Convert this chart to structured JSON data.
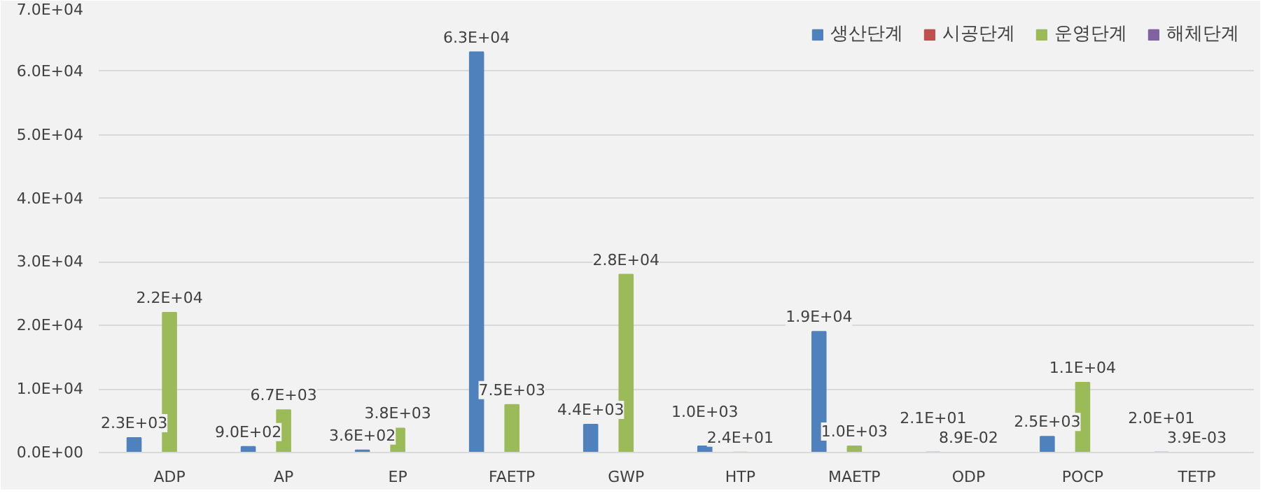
{
  "chart_data": {
    "type": "bar",
    "categories": [
      "ADP",
      "AP",
      "EP",
      "FAETP",
      "GWP",
      "HTP",
      "MAETP",
      "ODP",
      "POCP",
      "TETP"
    ],
    "series": [
      {
        "name": "생산단계",
        "color": "#4f81bd",
        "values": [
          2300,
          900,
          360,
          63000,
          4400,
          1000,
          19000,
          21,
          2500,
          20
        ],
        "value_labels": [
          "2.3E+03",
          "9.0E+02",
          "3.6E+02",
          "6.3E+04",
          "4.4E+03",
          "1.0E+03",
          "1.9E+04",
          "2.1E+01",
          "2.5E+03",
          "2.0E+01"
        ]
      },
      {
        "name": "시공단계",
        "color": "#c0504d",
        "values": [
          null,
          null,
          null,
          null,
          null,
          null,
          null,
          null,
          null,
          null
        ]
      },
      {
        "name": "운영단계",
        "color": "#9bbb59",
        "values": [
          22000,
          6700,
          3800,
          7500,
          28000,
          24,
          1000,
          0.089,
          11000,
          0.0039
        ],
        "value_labels": [
          "2.2E+04",
          "6.7E+03",
          "3.8E+03",
          "7.5E+03",
          "2.8E+04",
          "2.4E+01",
          "1.0E+03",
          "8.9E-02",
          "1.1E+04",
          "3.9E-03"
        ]
      },
      {
        "name": "해체단계",
        "color": "#8064a2",
        "values": [
          null,
          null,
          null,
          null,
          null,
          null,
          null,
          null,
          null,
          null
        ]
      }
    ],
    "ylim": [
      0,
      70000
    ],
    "yticks": [
      {
        "value": 0,
        "label": "0.0E+00"
      },
      {
        "value": 10000,
        "label": "1.0E+04"
      },
      {
        "value": 20000,
        "label": "2.0E+04"
      },
      {
        "value": 30000,
        "label": "3.0E+04"
      },
      {
        "value": 40000,
        "label": "4.0E+04"
      },
      {
        "value": 50000,
        "label": "5.0E+04"
      },
      {
        "value": 60000,
        "label": "6.0E+04"
      },
      {
        "value": 70000,
        "label": "7.0E+04"
      }
    ],
    "grid": "y",
    "legend": "top right"
  }
}
